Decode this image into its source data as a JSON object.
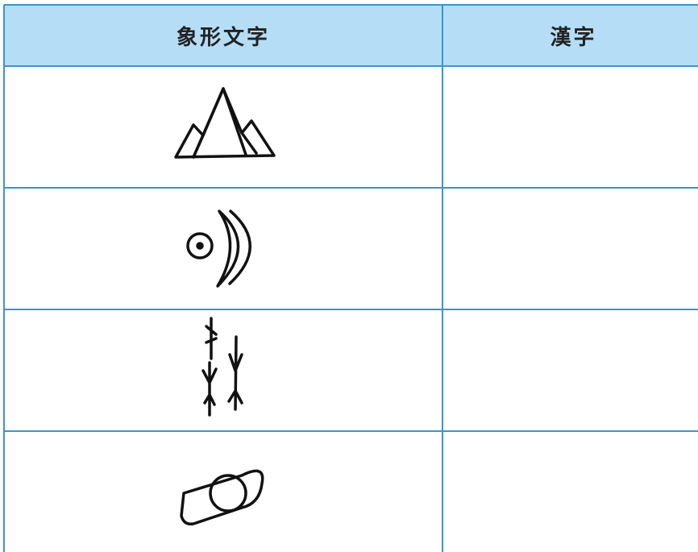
{
  "table": {
    "header": [
      "象形文字",
      "漢字"
    ]
  }
}
